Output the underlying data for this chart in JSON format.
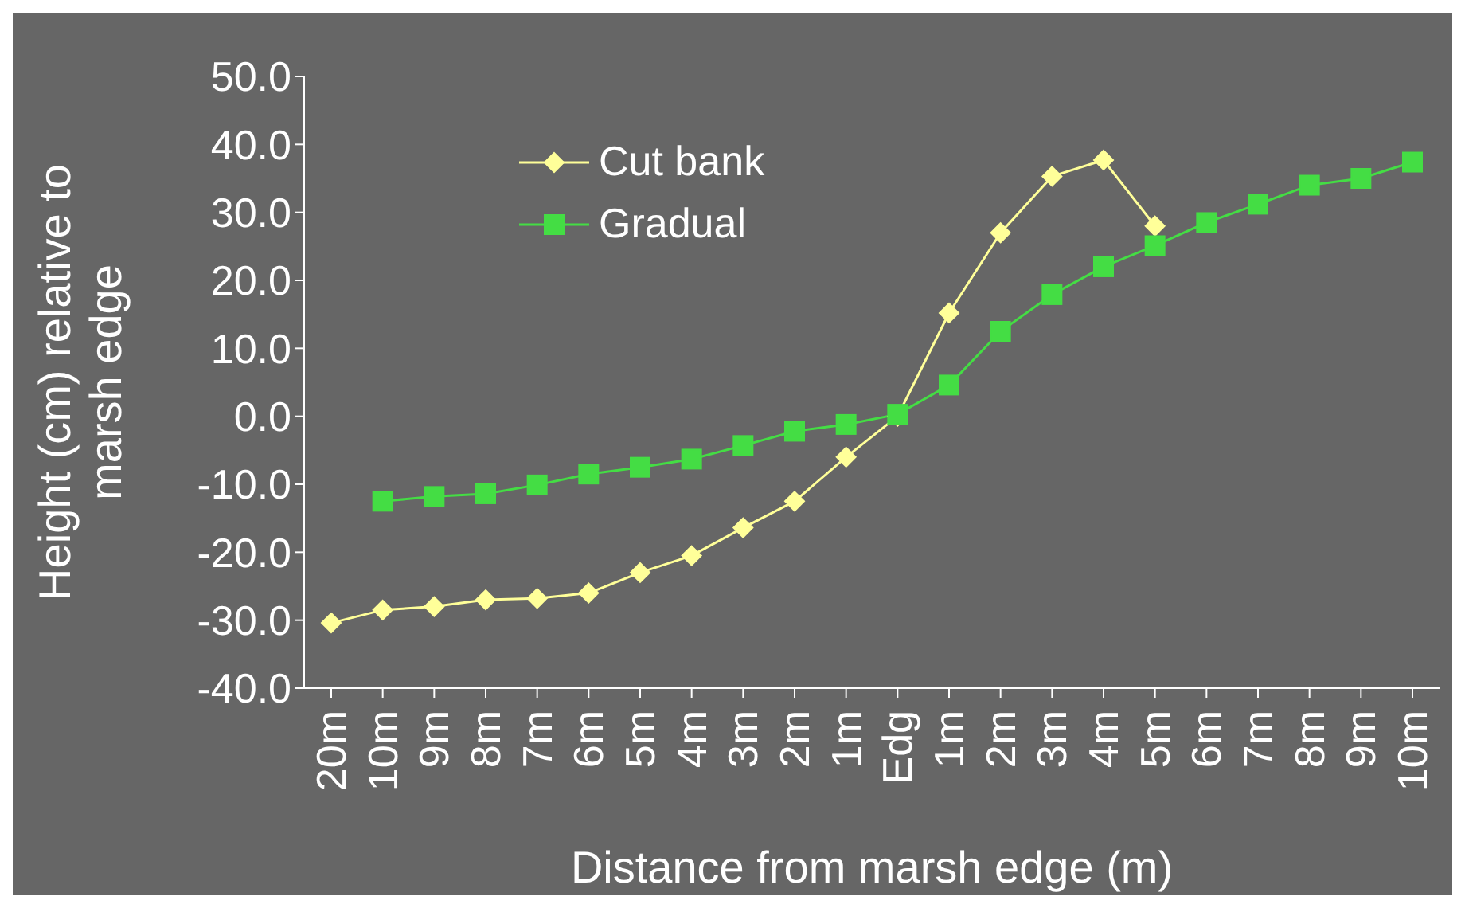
{
  "chart_data": {
    "type": "line",
    "xlabel": "Distance from marsh edge (m)",
    "ylabel": "Height (cm) relative to marsh edge",
    "categories": [
      "20m",
      "10m",
      "9m",
      "8m",
      "7m",
      "6m",
      "5m",
      "4m",
      "3m",
      "2m",
      "1m",
      "Edg",
      "1m",
      "2m",
      "3m",
      "4m",
      "5m",
      "6m",
      "7m",
      "8m",
      "9m",
      "10m"
    ],
    "series": [
      {
        "name": "Cut bank",
        "color": "#ffff99",
        "marker": "diamond",
        "values": [
          -30.4,
          -28.5,
          -28,
          -27,
          -26.8,
          -26,
          -23,
          -20.5,
          -16.4,
          -12.5,
          -6,
          0,
          15.2,
          27,
          35.3,
          37.7,
          28,
          null,
          null,
          null,
          null,
          null
        ]
      },
      {
        "name": "Gradual",
        "color": "#44dd44",
        "marker": "square",
        "values": [
          null,
          -12.5,
          -11.8,
          -11.4,
          -10.1,
          -8.5,
          -7.5,
          -6.3,
          -4.3,
          -2.2,
          -1.2,
          0.3,
          4.6,
          12.5,
          17.9,
          22,
          25.1,
          28.5,
          31.2,
          34,
          35,
          37.4
        ]
      }
    ],
    "ylim": [
      -40,
      50
    ],
    "yticks": [
      {
        "value": -40,
        "label": "-40.0"
      },
      {
        "value": -30,
        "label": "-30.0"
      },
      {
        "value": -20,
        "label": "-20.0"
      },
      {
        "value": -10,
        "label": "-10.0"
      },
      {
        "value": 0,
        "label": "0.0"
      },
      {
        "value": 10,
        "label": "10.0"
      },
      {
        "value": 20,
        "label": "20.0"
      },
      {
        "value": 30,
        "label": "30.0"
      },
      {
        "value": 40,
        "label": "40.0"
      },
      {
        "value": 50,
        "label": "50.0"
      }
    ],
    "grid": false,
    "legend": "top left",
    "line_style": "solid"
  }
}
